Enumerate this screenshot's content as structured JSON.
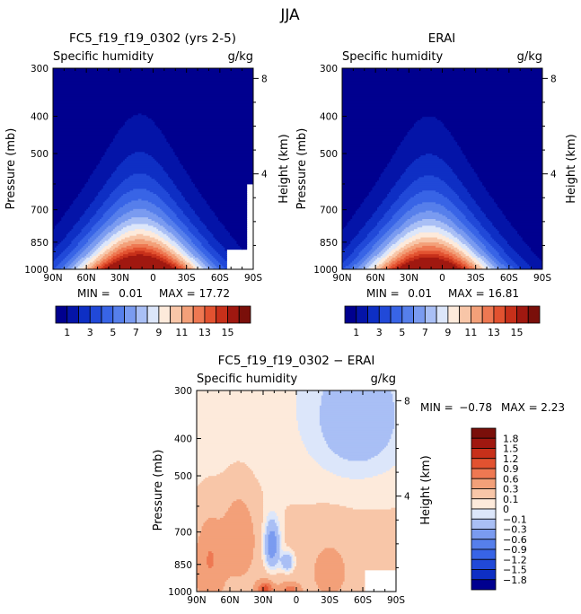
{
  "figure": {
    "season": "JJA"
  },
  "chart_data": [
    {
      "type": "contour",
      "title": "FC5_f19_f19_0302 (yrs 2-5)",
      "variable": "Specific humidity",
      "units": "g/kg",
      "ylabel": "Pressure (mb)",
      "y2label": "Height (km)",
      "x_ticks": [
        "90N",
        "60N",
        "30N",
        "0",
        "30S",
        "60S",
        "90S"
      ],
      "x_values": [
        90,
        60,
        30,
        0,
        -30,
        -60,
        -90
      ],
      "pressure_ticks": [
        300,
        400,
        500,
        700,
        850,
        1000
      ],
      "height_ticks": [
        8,
        4
      ],
      "ylim_mb": [
        1000,
        300
      ],
      "min_label": "MIN =",
      "min": "0.01",
      "max_label": "MAX =",
      "max": "17.72",
      "levels": [
        1,
        2,
        3,
        4,
        5,
        6,
        7,
        8,
        9,
        10,
        11,
        12,
        13,
        14,
        15
      ],
      "colorbar_labels": [
        "1",
        "3",
        "5",
        "7",
        "9",
        "11",
        "13",
        "15"
      ],
      "peak_lat": 12,
      "peak_value": 17.72
    },
    {
      "type": "contour",
      "title": "ERAI",
      "variable": "Specific humidity",
      "units": "g/kg",
      "ylabel": "Pressure (mb)",
      "y2label": "Height (km)",
      "x_ticks": [
        "90N",
        "60N",
        "30N",
        "0",
        "30S",
        "60S",
        "90S"
      ],
      "x_values": [
        90,
        60,
        30,
        0,
        -30,
        -60,
        -90
      ],
      "pressure_ticks": [
        300,
        400,
        500,
        700,
        850,
        1000
      ],
      "height_ticks": [
        8,
        4
      ],
      "ylim_mb": [
        1000,
        300
      ],
      "min_label": "MIN =",
      "min": "0.01",
      "max_label": "MAX =",
      "max": "16.81",
      "levels": [
        1,
        2,
        3,
        4,
        5,
        6,
        7,
        8,
        9,
        10,
        11,
        12,
        13,
        14,
        15
      ],
      "colorbar_labels": [
        "1",
        "3",
        "5",
        "7",
        "9",
        "11",
        "13",
        "15"
      ],
      "peak_lat": 12,
      "peak_value": 16.81
    },
    {
      "type": "contour",
      "title": "FC5_f19_f19_0302 − ERAI",
      "variable": "Specific humidity",
      "units": "g/kg",
      "ylabel": "Pressure (mb)",
      "y2label": "Height (km)",
      "x_ticks": [
        "90N",
        "60N",
        "30N",
        "0",
        "30S",
        "60S",
        "90S"
      ],
      "x_values": [
        90,
        60,
        30,
        0,
        -30,
        -60,
        -90
      ],
      "pressure_ticks": [
        300,
        400,
        500,
        700,
        850,
        1000
      ],
      "height_ticks": [
        8,
        4
      ],
      "ylim_mb": [
        1000,
        300
      ],
      "min_label": "MIN =",
      "min": "−0.78",
      "max_label": "MAX =",
      "max": "2.23",
      "levels": [
        -1.8,
        -1.5,
        -1.2,
        -0.9,
        -0.6,
        -0.3,
        -0.1,
        0,
        0.1,
        0.3,
        0.6,
        0.9,
        1.2,
        1.5,
        1.8
      ],
      "colorbar_labels": [
        "1.8",
        "1.5",
        "1.2",
        "0.9",
        "0.6",
        "0.3",
        "0.1",
        "0",
        "−0.1",
        "−0.3",
        "−0.6",
        "−0.9",
        "−1.2",
        "−1.5",
        "−1.8"
      ]
    }
  ],
  "colors": {
    "humidity": [
      "#00008f",
      "#0414a8",
      "#0e2fc4",
      "#2149d8",
      "#3864e6",
      "#567feb",
      "#7a9bf0",
      "#a9bff5",
      "#dce6fa",
      "#fdeadb",
      "#f8c6a8",
      "#f3a079",
      "#ee7852",
      "#e25230",
      "#c7301a",
      "#a01810",
      "#7a0f0a"
    ],
    "difference": [
      "#7a0f0a",
      "#a01810",
      "#c7301a",
      "#e25230",
      "#ee7852",
      "#f3a079",
      "#f8c6a8",
      "#fdeadb",
      "#dce6fa",
      "#a9bff5",
      "#7a9bf0",
      "#567feb",
      "#3864e6",
      "#2149d8",
      "#0e2fc4",
      "#00008f"
    ]
  }
}
